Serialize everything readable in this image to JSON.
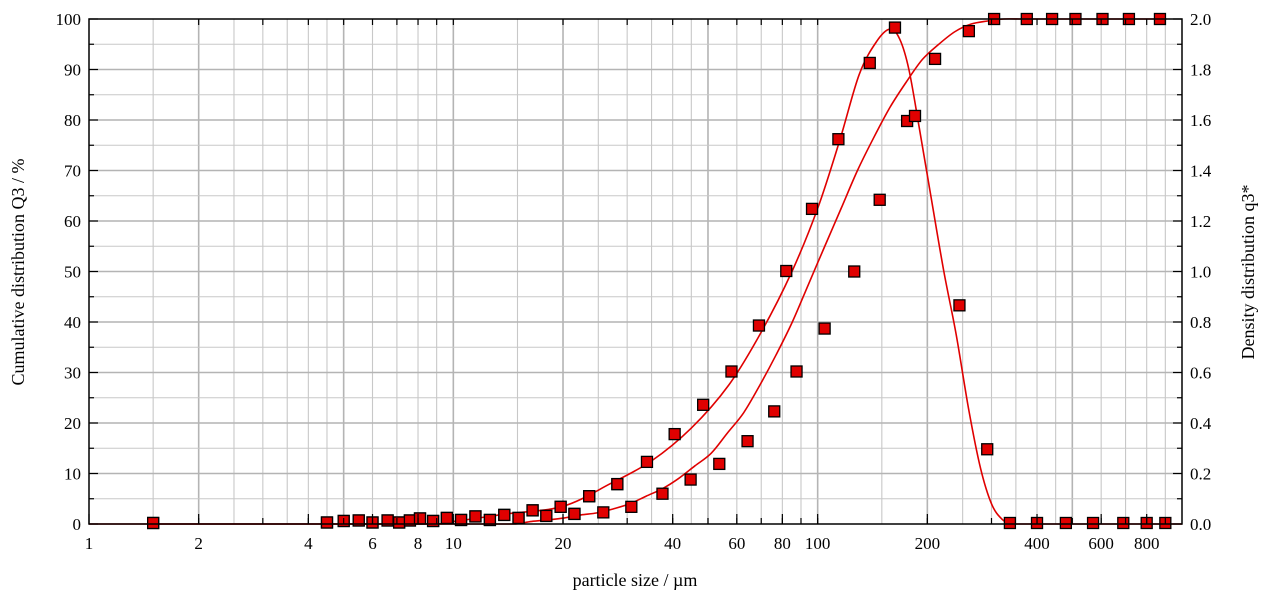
{
  "chart_data": {
    "type": "scatter",
    "title": "",
    "xlabel": "particle size / µm",
    "ylabel_left": "Cumulative distribution Q3 / %",
    "ylabel_right": "Density distribution q3*",
    "x_scale": "log",
    "xlim": [
      1,
      1000
    ],
    "ylim_left": [
      0,
      100
    ],
    "ylim_right": [
      0,
      2.0
    ],
    "grid": true,
    "x_ticks": [
      1,
      2,
      4,
      6,
      8,
      10,
      20,
      40,
      60,
      80,
      100,
      200,
      400,
      600,
      800
    ],
    "x_tick_labels": [
      "1",
      "2",
      "4",
      "6",
      "8",
      "10",
      "20",
      "40",
      "60",
      "80",
      "100",
      "200",
      "400",
      "600",
      "800"
    ],
    "y_left_ticks": [
      0,
      10,
      20,
      30,
      40,
      50,
      60,
      70,
      80,
      90,
      100
    ],
    "y_left_tick_labels": [
      "0",
      "10",
      "20",
      "30",
      "40",
      "50",
      "60",
      "70",
      "80",
      "90",
      "100"
    ],
    "y_right_ticks": [
      0,
      0.2,
      0.4,
      0.6,
      0.8,
      1.0,
      1.2,
      1.4,
      1.6,
      1.8,
      2.0
    ],
    "y_right_tick_labels": [
      "0.0",
      "0.2",
      "0.4",
      "0.6",
      "0.8",
      "1.0",
      "1.2",
      "1.4",
      "1.6",
      "1.8",
      "2.0"
    ],
    "colors": {
      "marker_fill": "#e00000",
      "marker_stroke": "#000000",
      "line": "#e00000"
    },
    "series": [
      {
        "axis": "left",
        "x": [
          1.5,
          4.6,
          5.1,
          5.6,
          6.1,
          6.7,
          7.3,
          8.0,
          8.9,
          9.8,
          10.9,
          12.1,
          13.4,
          14.8,
          16.4,
          18.2,
          20.2,
          22.4,
          24.8,
          27.5,
          30.5,
          33.8,
          37.5,
          41.5,
          46.0,
          51.0,
          56.5,
          62.6,
          69.4,
          76.9,
          85.2,
          94.4,
          104.6,
          116.0,
          128.6,
          142.5,
          157.9,
          175.0,
          193.9,
          215.0,
          238.2,
          264.0,
          292.6,
          324.3,
          359.4,
          398.3,
          441.4,
          489.2,
          542.2,
          601.0,
          666.0,
          738.1,
          818.0,
          906.5
        ],
        "y": [
          0,
          0,
          0,
          0,
          0,
          0,
          0,
          0,
          0,
          0,
          0,
          0,
          0,
          0,
          0.5,
          0.8,
          1.2,
          1.8,
          2.2,
          3.0,
          4.0,
          5.5,
          7.0,
          9.0,
          11.5,
          14.0,
          18.0,
          22.0,
          27.5,
          33.5,
          40.0,
          47.5,
          55.0,
          62.5,
          70.0,
          76.5,
          82.5,
          87.5,
          92.0,
          95.0,
          97.5,
          99.0,
          99.6,
          100,
          100,
          100,
          100,
          100,
          100,
          100,
          100,
          100,
          100,
          100
        ],
        "markers_x": [
          1.5,
          4.5,
          5.0,
          5.5,
          6.0,
          6.6,
          7.1,
          7.6,
          8.1,
          8.8,
          9.6,
          10.5,
          11.5,
          12.6,
          13.8,
          15.1,
          16.5,
          18.0,
          19.7,
          21.5,
          23.6,
          25.8,
          28.2,
          30.8,
          37.5,
          44.8,
          53.7,
          64.2,
          76.0,
          87.5,
          104.5,
          126.0,
          148.0,
          176.0,
          210.0,
          260.0,
          305.0,
          375.0,
          440.0,
          510.0,
          605.0,
          715.0,
          870.0
        ],
        "markers_y": [
          0.2,
          0.3,
          0.6,
          0.7,
          0.3,
          0.7,
          0.3,
          0.7,
          1.1,
          0.6,
          1.2,
          0.8,
          1.5,
          0.8,
          1.8,
          1.2,
          2.7,
          1.6,
          3.4,
          2.0,
          5.5,
          2.3,
          7.9,
          3.4,
          6.0,
          8.8,
          11.9,
          16.4,
          22.3,
          30.2,
          38.7,
          50.0,
          64.2,
          79.8,
          92.1,
          97.6,
          100,
          100,
          100,
          100,
          100,
          100,
          100
        ]
      },
      {
        "axis": "right",
        "x": [
          1.0,
          8.0,
          10.0,
          14.0,
          20.0,
          27.0,
          35.0,
          45.0,
          57.0,
          70.0,
          85.0,
          100.0,
          115.0,
          130.0,
          145.0,
          158.0,
          168.0,
          178.0,
          190.0,
          205.0,
          222.0,
          240.0,
          260.0,
          280.0,
          300.0,
          320.0,
          340.0,
          360.0,
          400.0,
          1000.0
        ],
        "y": [
          0,
          0,
          0.01,
          0.04,
          0.07,
          0.16,
          0.25,
          0.38,
          0.55,
          0.76,
          1.0,
          1.25,
          1.52,
          1.78,
          1.91,
          1.96,
          1.92,
          1.8,
          1.57,
          1.29,
          1.0,
          0.75,
          0.45,
          0.22,
          0.08,
          0.02,
          0.0,
          0.0,
          0.0,
          0.0
        ],
        "markers_x": [
          1.5,
          4.5,
          5.0,
          5.5,
          6.0,
          6.6,
          7.1,
          7.6,
          8.1,
          8.8,
          9.6,
          10.5,
          11.5,
          12.6,
          13.8,
          15.1,
          16.5,
          18.0,
          19.7,
          21.5,
          23.6,
          28.2,
          34.0,
          40.5,
          48.5,
          58.0,
          69.0,
          82.0,
          96.5,
          114.0,
          139.0,
          163.0,
          185.0,
          245.0,
          292.0,
          337.0,
          400.0,
          480.0,
          570.0,
          690.0,
          800.0,
          900.0
        ],
        "markers_y": [
          0.004,
          0.006,
          0.012,
          0.014,
          0.006,
          0.014,
          0.006,
          0.014,
          0.022,
          0.012,
          0.024,
          0.016,
          0.03,
          0.016,
          0.036,
          0.024,
          0.054,
          0.032,
          0.068,
          0.04,
          0.11,
          0.158,
          0.246,
          0.356,
          0.472,
          0.604,
          0.786,
          1.002,
          1.248,
          1.524,
          1.826,
          1.966,
          1.616,
          0.866,
          0.296,
          0.004,
          0.004,
          0.004,
          0.004,
          0.004,
          0.004,
          0.004
        ]
      }
    ]
  }
}
